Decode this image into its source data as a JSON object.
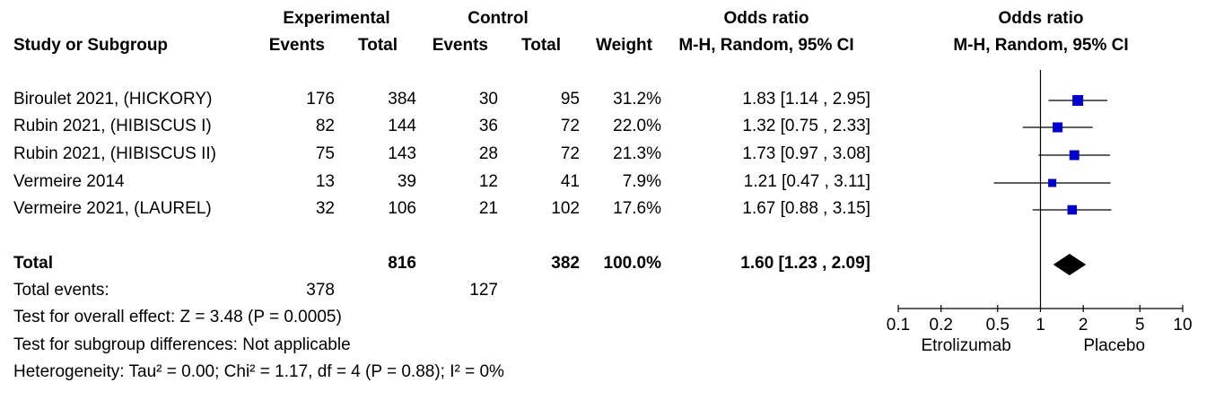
{
  "headers": {
    "group_experimental": "Experimental",
    "group_control": "Control",
    "group_or_text": "Odds ratio",
    "group_or_plot": "Odds ratio",
    "study": "Study or Subgroup",
    "exp_events": "Events",
    "exp_total": "Total",
    "ctl_events": "Events",
    "ctl_total": "Total",
    "weight": "Weight",
    "method_text": "M-H, Random, 95% CI",
    "method_plot": "M-H, Random, 95% CI"
  },
  "studies": [
    {
      "name": "Biroulet 2021, (HICKORY)",
      "exp_events": "176",
      "exp_total": "384",
      "ctl_events": "30",
      "ctl_total": "95",
      "weight": "31.2%",
      "ci_text": "1.83 [1.14 , 2.95]"
    },
    {
      "name": "Rubin 2021, (HIBISCUS I)",
      "exp_events": "82",
      "exp_total": "144",
      "ctl_events": "36",
      "ctl_total": "72",
      "weight": "22.0%",
      "ci_text": "1.32 [0.75 , 2.33]"
    },
    {
      "name": "Rubin 2021, (HIBISCUS II)",
      "exp_events": "75",
      "exp_total": "143",
      "ctl_events": "28",
      "ctl_total": "72",
      "weight": "21.3%",
      "ci_text": "1.73 [0.97 , 3.08]"
    },
    {
      "name": "Vermeire 2014",
      "exp_events": "13",
      "exp_total": "39",
      "ctl_events": "12",
      "ctl_total": "41",
      "weight": "7.9%",
      "ci_text": "1.21 [0.47 , 3.11]"
    },
    {
      "name": "Vermeire 2021, (LAUREL)",
      "exp_events": "32",
      "exp_total": "106",
      "ctl_events": "21",
      "ctl_total": "102",
      "weight": "17.6%",
      "ci_text": "1.67 [0.88 , 3.15]"
    }
  ],
  "total": {
    "label": "Total",
    "exp_total": "816",
    "ctl_total": "382",
    "weight": "100.0%",
    "ci_text": "1.60 [1.23 , 2.09]"
  },
  "total_events": {
    "label": "Total events:",
    "exp_events": "378",
    "ctl_events": "127"
  },
  "footer": {
    "overall_effect": "Test for overall effect: Z = 3.48 (P = 0.0005)",
    "subgroup": "Test for subgroup differences: Not applicable",
    "heterogeneity": "Heterogeneity: Tau² = 0.00; Chi² = 1.17, df = 4 (P = 0.88); I² = 0%"
  },
  "colors": {
    "marker": "#0000cc",
    "diamond": "#000000",
    "line": "#000000"
  },
  "chart_data": {
    "type": "forest",
    "scale": "log",
    "xlim": [
      0.1,
      10
    ],
    "ticks": [
      0.1,
      0.2,
      0.5,
      1,
      2,
      5,
      10
    ],
    "tick_labels": [
      "0.1",
      "0.2",
      "0.5",
      "1",
      "2",
      "5",
      "10"
    ],
    "null_value": 1,
    "favours_left": "Etrolizumab",
    "favours_right": "Placebo",
    "studies": [
      {
        "or": 1.83,
        "lo": 1.14,
        "hi": 2.95,
        "weight": 31.2
      },
      {
        "or": 1.32,
        "lo": 0.75,
        "hi": 2.33,
        "weight": 22.0
      },
      {
        "or": 1.73,
        "lo": 0.97,
        "hi": 3.08,
        "weight": 21.3
      },
      {
        "or": 1.21,
        "lo": 0.47,
        "hi": 3.11,
        "weight": 7.9
      },
      {
        "or": 1.67,
        "lo": 0.88,
        "hi": 3.15,
        "weight": 17.6
      }
    ],
    "pooled": {
      "or": 1.6,
      "lo": 1.23,
      "hi": 2.09
    }
  }
}
